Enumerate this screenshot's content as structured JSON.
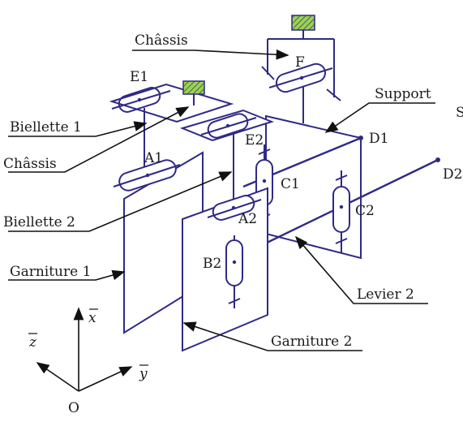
{
  "labels": {
    "chassis_top": "Châssis",
    "chassis_left": "Châssis",
    "f": "F",
    "e1": "E1",
    "e2": "E2",
    "biellette1": "Biellette 1",
    "biellette2": "Biellette 2",
    "a1": "A1",
    "a2": "A2",
    "b2": "B2",
    "c1": "C1",
    "c2": "C2",
    "d1": "D1",
    "d2": "D2",
    "support": "Support",
    "garniture1": "Garniture 1",
    "garniture2": "Garniture 2",
    "levier2": "Levier 2",
    "cut_s": "S"
  },
  "axes": {
    "x": "x",
    "y": "y",
    "z": "z",
    "origin": "O"
  },
  "colors": {
    "mechanism": "#2e2a86",
    "leaders": "#111111",
    "hatch": "#8cc63f"
  }
}
